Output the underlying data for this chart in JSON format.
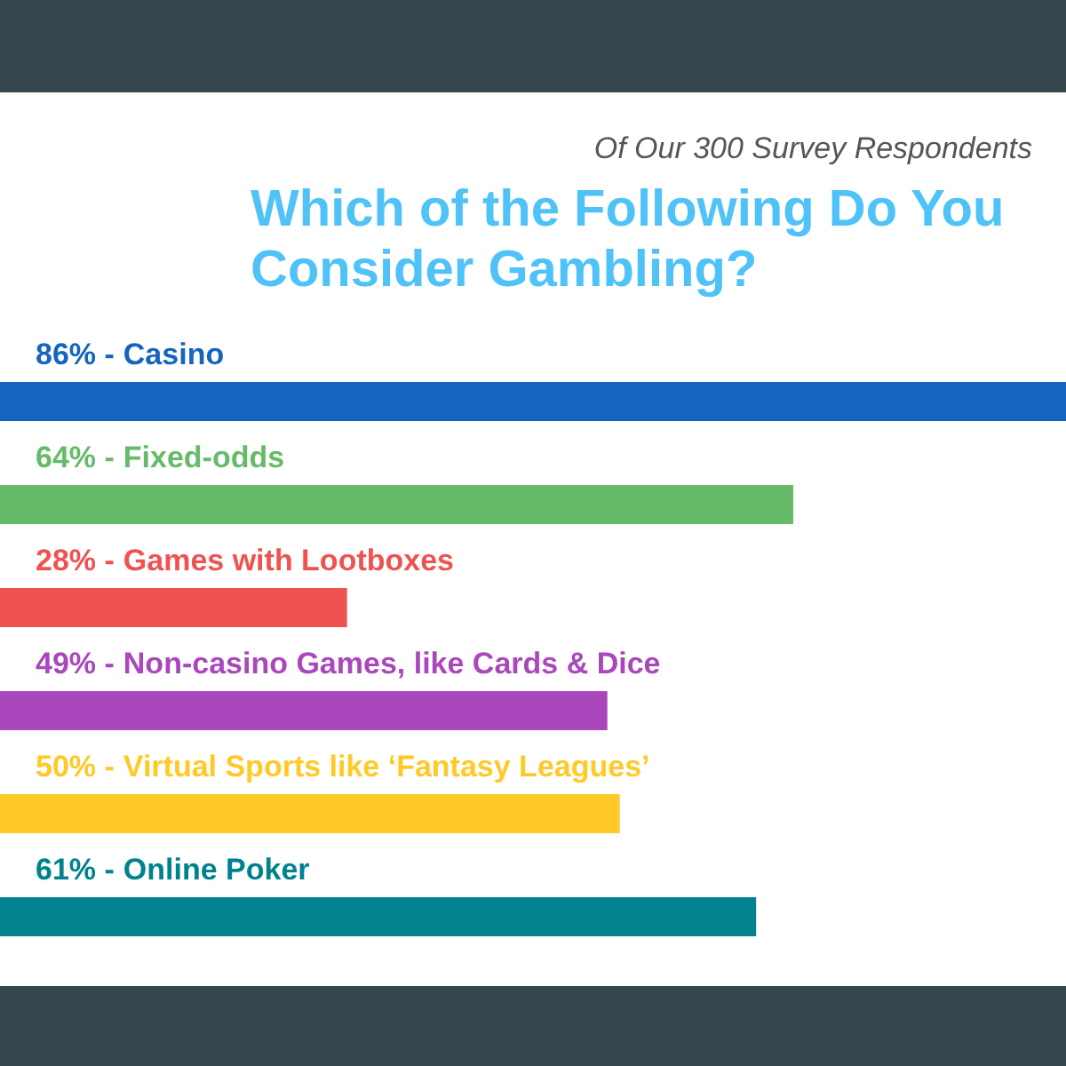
{
  "chart_data": {
    "type": "bar",
    "orientation": "horizontal",
    "subtitle": "Of Our 300 Survey Respondents",
    "title": "Which of the Following Do You Consider Gambling?",
    "categories": [
      "Casino",
      "Fixed-odds",
      "Games with Lootboxes",
      "Non-casino Games, like Cards & Dice",
      "Virtual Sports like ‘Fantasy Leagues’",
      "Online Poker"
    ],
    "values": [
      86,
      64,
      28,
      49,
      50,
      61
    ],
    "value_labels": [
      "86% -",
      "64% -",
      "28% -",
      "49% -",
      "50% -",
      "61% -"
    ],
    "colors": [
      "#1565c0",
      "#66bb6a",
      "#ef5350",
      "#ab47bc",
      "#ffca28",
      "#00838f"
    ]
  }
}
